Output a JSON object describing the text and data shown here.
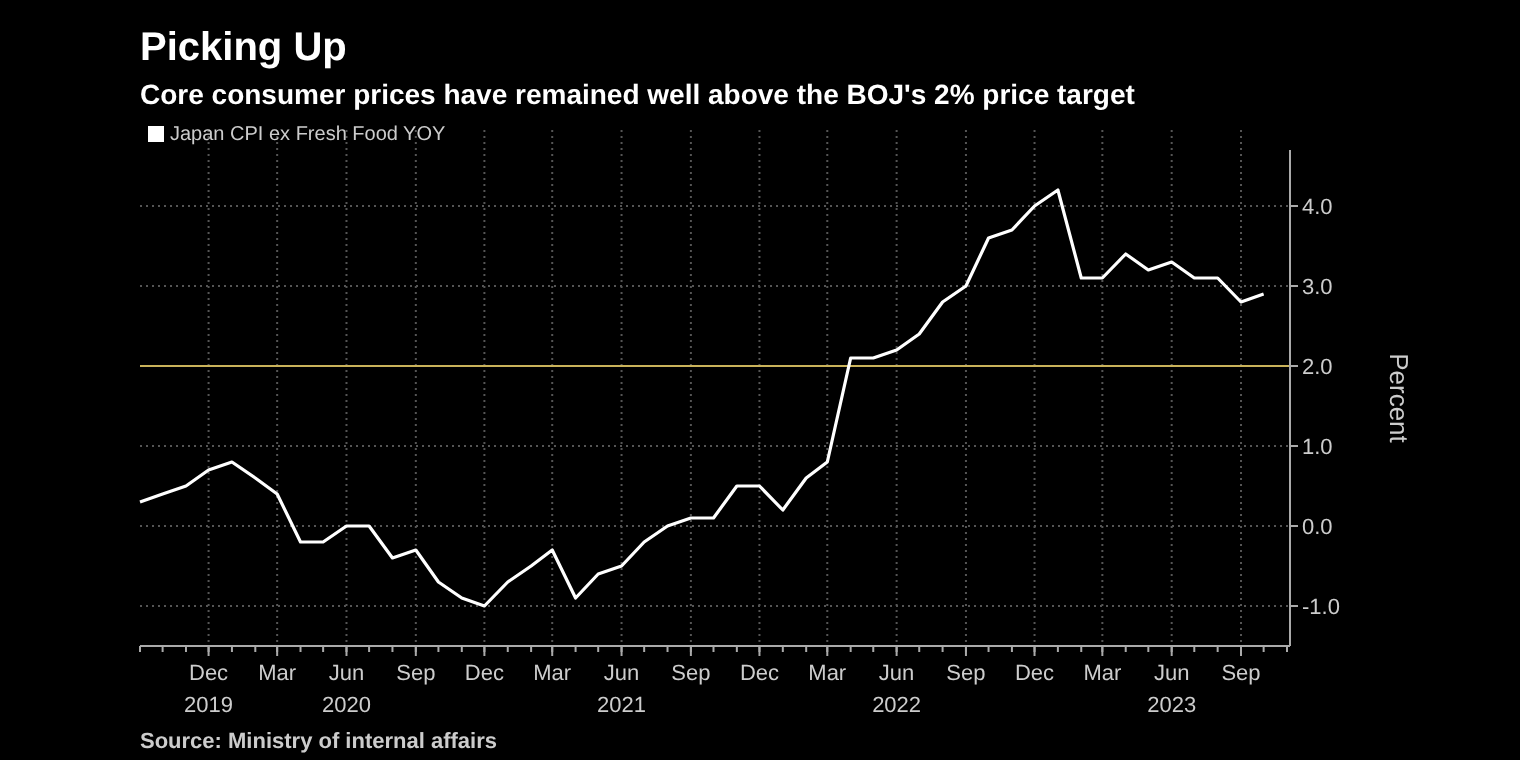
{
  "chart_data": {
    "type": "line",
    "title": "Picking Up",
    "subtitle": "Core consumer prices have remained well above the BOJ's 2% price target",
    "ylabel": "Percent",
    "annotations": [
      "Source: Ministry of internal affairs"
    ],
    "x": [
      "2019-09",
      "2019-10",
      "2019-11",
      "2019-12",
      "2020-01",
      "2020-02",
      "2020-03",
      "2020-04",
      "2020-05",
      "2020-06",
      "2020-07",
      "2020-08",
      "2020-09",
      "2020-10",
      "2020-11",
      "2020-12",
      "2021-01",
      "2021-02",
      "2021-03",
      "2021-04",
      "2021-05",
      "2021-06",
      "2021-07",
      "2021-08",
      "2021-09",
      "2021-10",
      "2021-11",
      "2021-12",
      "2022-01",
      "2022-02",
      "2022-03",
      "2022-04",
      "2022-05",
      "2022-06",
      "2022-07",
      "2022-08",
      "2022-09",
      "2022-10",
      "2022-11",
      "2022-12",
      "2023-01",
      "2023-02",
      "2023-03",
      "2023-04",
      "2023-05",
      "2023-06",
      "2023-07",
      "2023-08",
      "2023-09",
      "2023-10"
    ],
    "series": [
      {
        "name": "Japan CPI ex Fresh Food YOY",
        "color": "#ffffff",
        "values": [
          0.3,
          0.4,
          0.5,
          0.7,
          0.8,
          0.6,
          0.4,
          -0.2,
          -0.2,
          0.0,
          0.0,
          -0.4,
          -0.3,
          -0.7,
          -0.9,
          -1.0,
          -0.7,
          -0.5,
          -0.3,
          -0.9,
          -0.6,
          -0.5,
          -0.2,
          0.0,
          0.1,
          0.1,
          0.5,
          0.5,
          0.2,
          0.6,
          0.8,
          2.1,
          2.1,
          2.2,
          2.4,
          2.8,
          3.0,
          3.6,
          3.7,
          4.0,
          4.2,
          3.1,
          3.1,
          3.4,
          3.2,
          3.3,
          3.1,
          3.1,
          2.8,
          2.9
        ]
      }
    ],
    "xlim": [
      "2019-09",
      "2023-11-05"
    ],
    "xticks": [
      {
        "value": "2019-12",
        "label": "Dec\n2019"
      },
      {
        "value": "2020-03",
        "label": "Mar"
      },
      {
        "value": "2020-06",
        "label": "Jun\n2020"
      },
      {
        "value": "2020-09",
        "label": "Sep"
      },
      {
        "value": "2020-12",
        "label": "Dec"
      },
      {
        "value": "2021-03",
        "label": "Mar"
      },
      {
        "value": "2021-06",
        "label": "Jun\n2021"
      },
      {
        "value": "2021-09",
        "label": "Sep"
      },
      {
        "value": "2021-12",
        "label": "Dec"
      },
      {
        "value": "2022-03",
        "label": "Mar"
      },
      {
        "value": "2022-06",
        "label": "Jun\n2022"
      },
      {
        "value": "2022-09",
        "label": "Sep"
      },
      {
        "value": "2022-12",
        "label": "Dec"
      },
      {
        "value": "2023-03",
        "label": "Mar"
      },
      {
        "value": "2023-06",
        "label": "Jun\n2023"
      },
      {
        "value": "2023-09",
        "label": "Sep"
      }
    ],
    "ylim": [
      -1.5,
      4.7
    ],
    "yticks": [
      {
        "value": -1,
        "label": "-1.0"
      },
      {
        "value": 0,
        "label": "0.0"
      },
      {
        "value": 1,
        "label": "1.0"
      },
      {
        "value": 2,
        "label": "2.0"
      },
      {
        "value": 3,
        "label": "3.0"
      },
      {
        "value": 4,
        "label": "4.0"
      }
    ],
    "ref_lines": [
      {
        "axis": "y",
        "value": 2,
        "color": "#c9b25a"
      }
    ],
    "grid": true,
    "legend": "top left",
    "marker": "none",
    "line_style": "solid"
  }
}
